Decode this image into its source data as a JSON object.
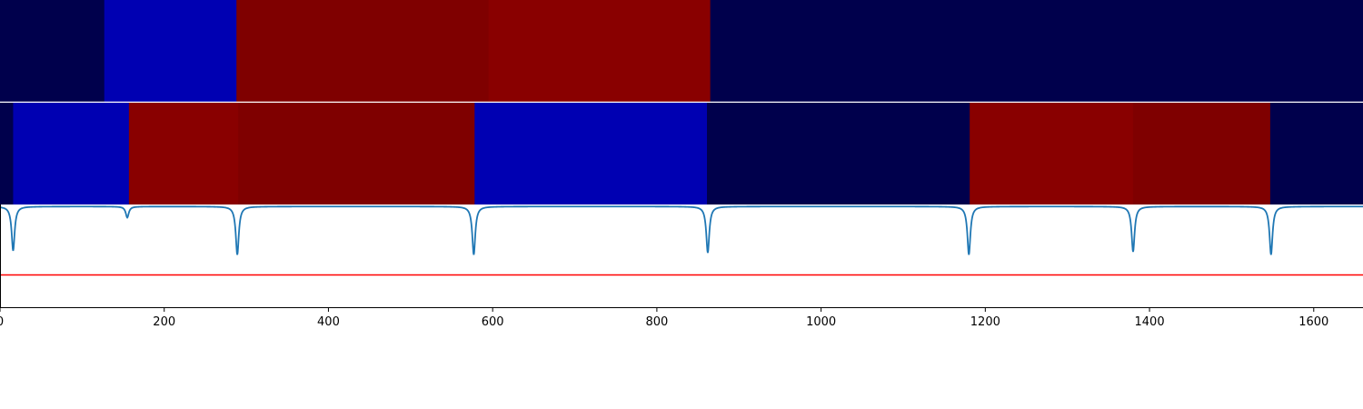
{
  "chart_data": [
    {
      "type": "heatmap",
      "title": "",
      "xlabel": "",
      "ylabel": "",
      "xlim": [
        0,
        1660
      ],
      "segments": [
        {
          "start": 0,
          "end": 127,
          "color": "#00004c"
        },
        {
          "start": 127,
          "end": 288,
          "color": "#0000b2"
        },
        {
          "start": 288,
          "end": 595,
          "color": "#7f0000"
        },
        {
          "start": 595,
          "end": 865,
          "color": "#890000"
        },
        {
          "start": 865,
          "end": 1660,
          "color": "#00004c"
        }
      ]
    },
    {
      "type": "heatmap",
      "title": "",
      "xlabel": "",
      "ylabel": "",
      "xlim": [
        0,
        1660
      ],
      "segments": [
        {
          "start": 0,
          "end": 16,
          "color": "#00004c"
        },
        {
          "start": 16,
          "end": 157,
          "color": "#0000b2"
        },
        {
          "start": 157,
          "end": 290,
          "color": "#890000"
        },
        {
          "start": 290,
          "end": 578,
          "color": "#7f0000"
        },
        {
          "start": 578,
          "end": 861,
          "color": "#0000b2"
        },
        {
          "start": 861,
          "end": 1181,
          "color": "#00004c"
        },
        {
          "start": 1181,
          "end": 1380,
          "color": "#890000"
        },
        {
          "start": 1380,
          "end": 1547,
          "color": "#7f0000"
        },
        {
          "start": 1547,
          "end": 1660,
          "color": "#00004c"
        }
      ]
    },
    {
      "type": "line",
      "title": "",
      "xlabel": "",
      "ylabel": "",
      "xlim": [
        0,
        1660
      ],
      "ylim": [
        0,
        1.02
      ],
      "x_ticks": [
        0,
        200,
        400,
        600,
        800,
        1000,
        1200,
        1400,
        1600
      ],
      "x_tick_labels": [
        "0",
        "200",
        "400",
        "600",
        "800",
        "1000",
        "1200",
        "1400",
        "1600"
      ],
      "series": [
        {
          "color": "#1f77b4",
          "baseline": 1.0,
          "dips": [
            {
              "x": 16,
              "depth": 0.44
            },
            {
              "x": 155,
              "depth": 0.11
            },
            {
              "x": 289,
              "depth": 0.48
            },
            {
              "x": 577,
              "depth": 0.48
            },
            {
              "x": 862,
              "depth": 0.46
            },
            {
              "x": 1180,
              "depth": 0.48
            },
            {
              "x": 1380,
              "depth": 0.45
            },
            {
              "x": 1548,
              "depth": 0.48
            }
          ]
        }
      ],
      "threshold": {
        "y": 0.32,
        "color": "#ff0000"
      }
    }
  ]
}
